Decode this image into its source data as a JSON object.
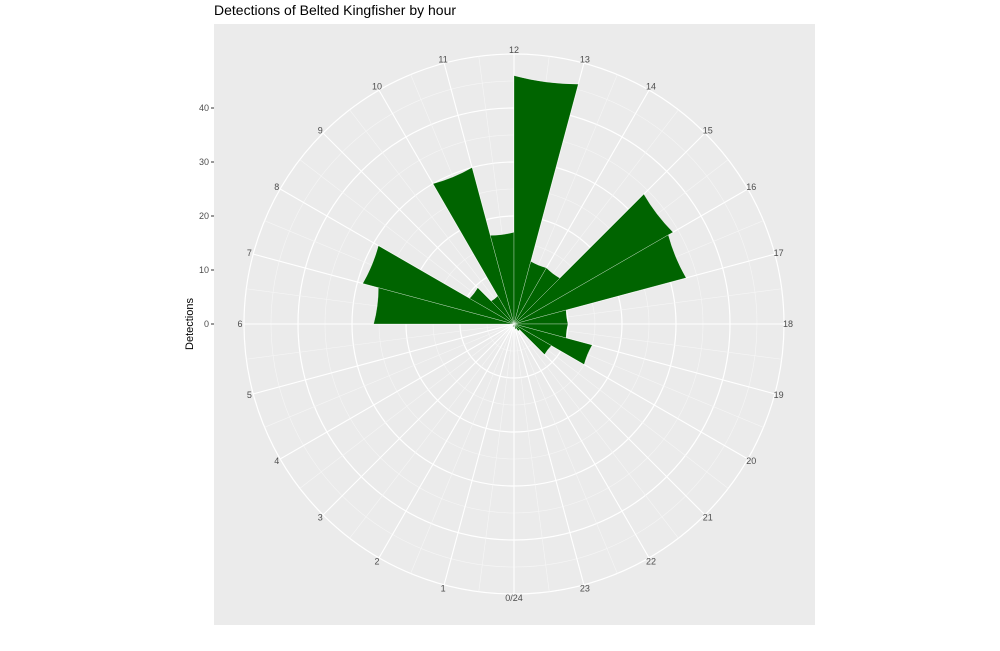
{
  "chart_data": {
    "type": "bar",
    "coord": "polar",
    "title": "Detections of Belted Kingfisher by hour",
    "xlabel": "",
    "ylabel": "Detections",
    "ylim": [
      0,
      50
    ],
    "yticks": [
      0,
      10,
      20,
      30,
      40
    ],
    "hour_labels": [
      "0/24",
      "1",
      "2",
      "3",
      "4",
      "5",
      "6",
      "7",
      "8",
      "9",
      "10",
      "11",
      "12",
      "13",
      "14",
      "15",
      "16",
      "17",
      "18",
      "19",
      "20",
      "21",
      "22",
      "23"
    ],
    "hours": [
      0,
      1,
      2,
      3,
      4,
      5,
      6,
      7,
      8,
      9,
      10,
      11,
      12,
      13,
      14,
      15,
      16,
      17,
      18,
      19,
      20,
      21,
      22,
      23
    ],
    "values": [
      0.5,
      0.5,
      0,
      0,
      0,
      0,
      26,
      29,
      9.5,
      6,
      30,
      17,
      46,
      12,
      12,
      34,
      33,
      10,
      10,
      15,
      8,
      1.5,
      1,
      0
    ],
    "bar_color": "#006400",
    "panel_background": "#ebebeb",
    "grid": true
  }
}
